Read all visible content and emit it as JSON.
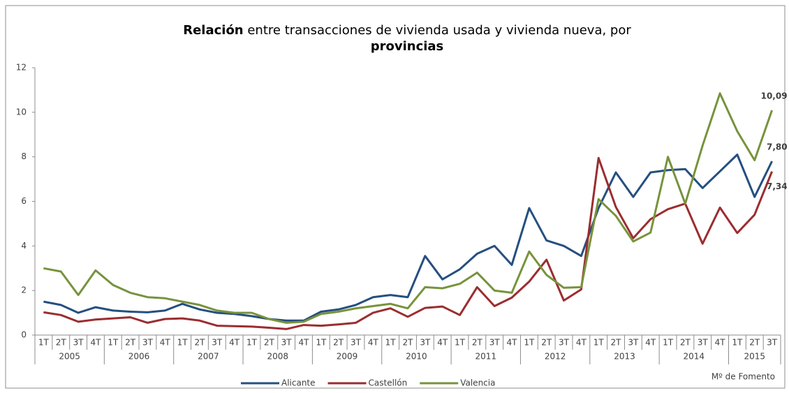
{
  "chart_data": {
    "type": "line",
    "title": [
      "Relación",
      " entre transacciones de vivienda usada y vivienda nueva, por",
      "provincias"
    ],
    "note": "Mº de Fomento",
    "categories": [
      "1T",
      "2T",
      "3T",
      "4T",
      "1T",
      "2T",
      "3T",
      "4T",
      "1T",
      "2T",
      "3T",
      "4T",
      "1T",
      "2T",
      "3T",
      "4T",
      "1T",
      "2T",
      "3T",
      "4T",
      "1T",
      "2T",
      "3T",
      "4T",
      "1T",
      "2T",
      "3T",
      "4T",
      "1T",
      "2T",
      "3T",
      "4T",
      "1T",
      "2T",
      "3T",
      "4T",
      "1T",
      "2T",
      "3T",
      "4T",
      "1T",
      "2T",
      "3T"
    ],
    "years": [
      "2005",
      "2006",
      "2007",
      "2008",
      "2009",
      "2010",
      "2011",
      "2012",
      "2013",
      "2014",
      "2015"
    ],
    "ylim": [
      0,
      12
    ],
    "yticks": [
      0,
      2,
      4,
      6,
      8,
      10,
      12
    ],
    "grid": false,
    "legend": "bottom",
    "series": [
      {
        "name": "Alicante",
        "color": "#254f80",
        "label_color": "#254f80",
        "values": [
          1.5,
          1.35,
          1.0,
          1.25,
          1.1,
          1.05,
          1.02,
          1.1,
          1.4,
          1.15,
          1.0,
          0.95,
          0.85,
          0.72,
          0.65,
          0.65,
          1.05,
          1.15,
          1.35,
          1.7,
          1.8,
          1.7,
          3.55,
          2.5,
          2.95,
          3.65,
          4.0,
          3.15,
          5.7,
          4.25,
          4.0,
          3.55,
          5.7,
          7.3,
          6.2,
          7.3,
          7.4,
          7.45,
          6.6,
          7.35,
          8.1,
          6.2,
          7.8
        ],
        "value_labels": [
          null,
          null,
          null,
          null,
          null,
          null,
          null,
          null,
          null,
          null,
          null,
          null,
          null,
          null,
          null,
          null,
          null,
          null,
          null,
          null,
          null,
          null,
          null,
          null,
          null,
          null,
          null,
          null,
          null,
          null,
          null,
          null,
          null,
          null,
          null,
          null,
          null,
          null,
          null,
          null,
          null,
          null,
          "7,80"
        ]
      },
      {
        "name": "Castellón",
        "color": "#9b2d30",
        "label_color": "#c0504d",
        "values": [
          1.02,
          0.9,
          0.6,
          0.7,
          0.75,
          0.8,
          0.55,
          0.72,
          0.75,
          0.65,
          0.42,
          0.4,
          0.38,
          0.33,
          0.27,
          0.45,
          0.42,
          0.48,
          0.55,
          1.0,
          1.2,
          0.82,
          1.22,
          1.28,
          0.9,
          2.15,
          1.3,
          1.68,
          2.4,
          3.38,
          1.55,
          2.05,
          7.95,
          5.75,
          4.35,
          5.2,
          5.65,
          5.9,
          4.1,
          5.72,
          4.58,
          5.4,
          7.34
        ],
        "value_labels": [
          null,
          null,
          null,
          null,
          null,
          null,
          null,
          null,
          null,
          null,
          null,
          null,
          null,
          null,
          null,
          null,
          null,
          null,
          null,
          null,
          null,
          null,
          null,
          null,
          null,
          null,
          null,
          null,
          null,
          null,
          null,
          null,
          null,
          null,
          null,
          null,
          null,
          null,
          null,
          null,
          null,
          null,
          "7,34"
        ]
      },
      {
        "name": "Valencia",
        "color": "#77933c",
        "label_color": "#5f7a2a",
        "values": [
          3.0,
          2.85,
          1.8,
          2.9,
          2.25,
          1.9,
          1.7,
          1.65,
          1.5,
          1.35,
          1.1,
          1.0,
          1.0,
          0.72,
          0.55,
          0.6,
          0.95,
          1.05,
          1.2,
          1.3,
          1.4,
          1.2,
          2.15,
          2.1,
          2.3,
          2.8,
          2.0,
          1.9,
          3.75,
          2.7,
          2.12,
          2.15,
          6.1,
          5.35,
          4.2,
          4.6,
          8.0,
          5.9,
          8.5,
          10.85,
          9.15,
          7.85,
          10.09
        ],
        "value_labels": [
          null,
          null,
          null,
          null,
          null,
          null,
          null,
          null,
          null,
          null,
          null,
          null,
          null,
          null,
          null,
          null,
          null,
          null,
          null,
          null,
          null,
          null,
          null,
          null,
          null,
          null,
          null,
          null,
          null,
          null,
          null,
          null,
          null,
          null,
          null,
          null,
          null,
          null,
          null,
          null,
          null,
          null,
          "10,09"
        ]
      }
    ]
  }
}
